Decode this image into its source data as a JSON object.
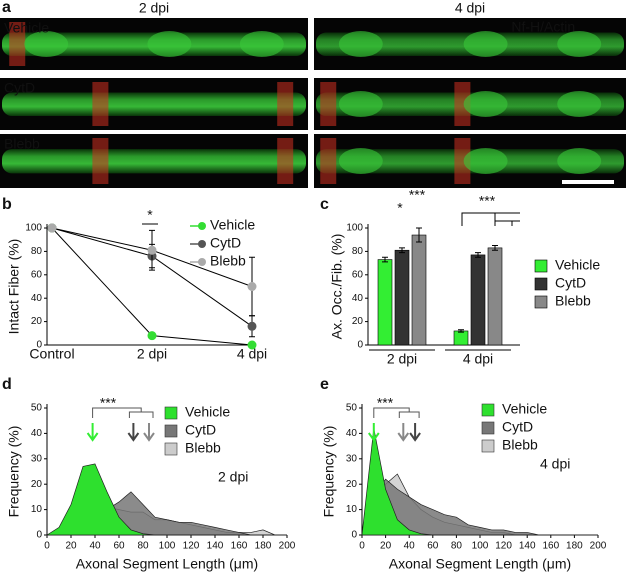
{
  "panel_a": {
    "letter": "a",
    "columns": [
      "2 dpi",
      "4 dpi"
    ],
    "rows": [
      "Vehicle",
      "CytD",
      "Blebb"
    ],
    "stain_labels": [
      "Nf-H/",
      "Actin"
    ]
  },
  "chart_data": [
    {
      "type": "line",
      "letter": "b",
      "y_label": "Intact Fiber (%)",
      "categories": [
        "Control",
        "2 dpi",
        "4 dpi"
      ],
      "series": [
        {
          "name": "Vehicle",
          "color": "#33dd33",
          "values": [
            100,
            8,
            0
          ],
          "errors": [
            null,
            null,
            null
          ]
        },
        {
          "name": "CytD",
          "color": "#555555",
          "values": [
            100,
            76,
            16
          ],
          "errors": [
            null,
            10,
            9
          ]
        },
        {
          "name": "Blebb",
          "color": "#aaaaaa",
          "values": [
            100,
            81,
            50
          ],
          "errors": [
            null,
            17,
            25
          ]
        }
      ],
      "ylim": [
        0,
        100
      ],
      "yticks": [
        0,
        20,
        40,
        60,
        80,
        100
      ],
      "annotations": [
        "*"
      ]
    },
    {
      "type": "bar",
      "letter": "c",
      "y_label": "Ax. Occ./Fib. (%)",
      "categories": [
        "2 dpi",
        "4 dpi"
      ],
      "series": [
        {
          "name": "Vehicle",
          "color": "#33ee33",
          "values": [
            73,
            12
          ],
          "errors": [
            2,
            1
          ]
        },
        {
          "name": "CytD",
          "color": "#333333",
          "values": [
            81,
            77
          ],
          "errors": [
            2,
            2
          ]
        },
        {
          "name": "Blebb",
          "color": "#888888",
          "values": [
            94,
            83
          ],
          "errors": [
            6,
            2
          ]
        }
      ],
      "ylim": [
        0,
        100
      ],
      "yticks": [
        0,
        20,
        40,
        60,
        80,
        100
      ],
      "annotations": [
        "*",
        "***",
        "***"
      ]
    },
    {
      "type": "area",
      "letter": "d",
      "x_label": "Axonal Segment Length (μm)",
      "y_label": "Frequency (%)",
      "x": [
        0,
        10,
        20,
        30,
        40,
        50,
        60,
        70,
        80,
        90,
        100,
        110,
        120,
        130,
        140,
        150,
        160,
        170,
        180,
        190,
        200
      ],
      "series": [
        {
          "name": "Vehicle",
          "color": "#2ee02e",
          "values": [
            0,
            3,
            12,
            27,
            28,
            17,
            7,
            2,
            0.5,
            0,
            0,
            0,
            0,
            0,
            0,
            0,
            0,
            0,
            0,
            0,
            0
          ],
          "mean": 38
        },
        {
          "name": "CytD",
          "color": "#777777",
          "values": [
            0,
            1,
            3,
            7,
            9,
            10,
            13,
            17,
            12,
            7,
            6,
            5,
            5,
            4,
            3,
            2,
            1,
            0,
            0,
            0,
            0
          ],
          "mean": 72
        },
        {
          "name": "Blebb",
          "color": "#cccccc",
          "values": [
            0,
            1,
            4,
            8,
            12,
            11,
            10,
            9,
            9,
            6,
            6,
            5,
            4,
            3,
            2,
            1,
            1,
            1,
            2,
            0,
            0
          ],
          "mean": 85
        }
      ],
      "xlim": [
        0,
        200
      ],
      "xticks": [
        0,
        20,
        40,
        60,
        80,
        100,
        120,
        140,
        160,
        180,
        200
      ],
      "ylim": [
        0,
        50
      ],
      "yticks": [
        0,
        10,
        20,
        30,
        40,
        50
      ],
      "annotations": [
        "***",
        "2 dpi"
      ]
    },
    {
      "type": "area",
      "letter": "e",
      "x_label": "Axonal Segment Length  (μm)",
      "y_label": "Frequency (%)",
      "x": [
        0,
        10,
        20,
        30,
        40,
        50,
        60,
        70,
        80,
        90,
        100,
        110,
        120,
        130,
        140,
        150,
        160,
        170,
        180,
        190,
        200
      ],
      "series": [
        {
          "name": "Vehicle",
          "color": "#2ee02e",
          "values": [
            0,
            42,
            18,
            6,
            2,
            0.5,
            0,
            0,
            0,
            0,
            0,
            0,
            0,
            0,
            0,
            0,
            0,
            0,
            0,
            0,
            0
          ],
          "mean": 10
        },
        {
          "name": "CytD",
          "color": "#777777",
          "values": [
            0,
            15,
            22,
            18,
            15,
            12,
            10,
            8,
            7,
            4,
            3,
            2,
            2,
            1,
            1,
            0,
            0,
            0,
            0,
            0,
            0
          ],
          "mean": 45
        },
        {
          "name": "Blebb",
          "color": "#cccccc",
          "values": [
            0,
            8,
            20,
            24,
            15,
            10,
            7,
            5,
            4,
            3,
            2,
            1,
            1,
            0,
            0,
            0,
            0,
            0,
            0,
            0,
            0
          ],
          "mean": 35
        }
      ],
      "xlim": [
        0,
        200
      ],
      "xticks": [
        0,
        20,
        40,
        60,
        80,
        100,
        120,
        140,
        160,
        180,
        200
      ],
      "ylim": [
        0,
        50
      ],
      "yticks": [
        0,
        10,
        20,
        30,
        40,
        50
      ],
      "annotations": [
        "***",
        "4 dpi"
      ]
    }
  ]
}
